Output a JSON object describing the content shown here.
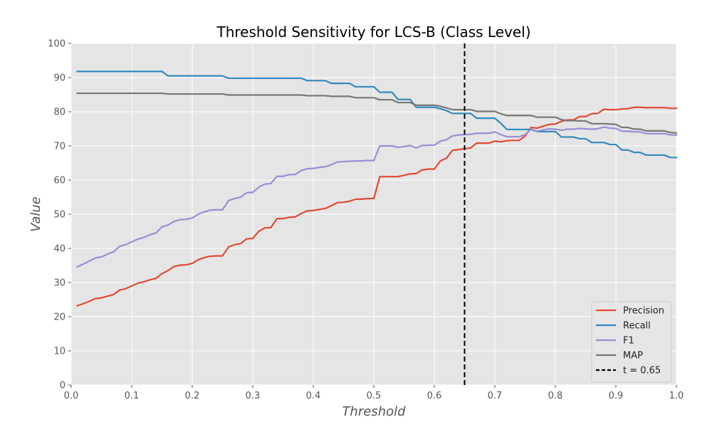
{
  "chart_data": {
    "type": "line",
    "title": "Threshold Sensitivity for LCS-B (Class Level)",
    "xlabel": "Threshold",
    "ylabel": "Value",
    "xlim": [
      0,
      1
    ],
    "ylim": [
      0,
      100
    ],
    "x_ticks": [
      "0.0",
      "0.1",
      "0.2",
      "0.3",
      "0.4",
      "0.5",
      "0.6",
      "0.7",
      "0.8",
      "0.9",
      "1.0"
    ],
    "y_ticks": [
      "0",
      "10",
      "20",
      "30",
      "40",
      "50",
      "60",
      "70",
      "80",
      "90",
      "100"
    ],
    "grid": true,
    "legend_position": "bottom-right",
    "x": [
      0.01,
      0.02,
      0.03,
      0.04,
      0.05,
      0.06,
      0.07,
      0.08,
      0.09,
      0.1,
      0.11,
      0.12,
      0.13,
      0.14,
      0.15,
      0.16,
      0.17,
      0.18,
      0.19,
      0.2,
      0.21,
      0.22,
      0.23,
      0.24,
      0.25,
      0.26,
      0.27,
      0.28,
      0.29,
      0.3,
      0.31,
      0.32,
      0.33,
      0.34,
      0.35,
      0.36,
      0.37,
      0.38,
      0.39,
      0.4,
      0.41,
      0.42,
      0.43,
      0.44,
      0.45,
      0.46,
      0.47,
      0.48,
      0.49,
      0.5,
      0.51,
      0.52,
      0.53,
      0.54,
      0.55,
      0.56,
      0.57,
      0.58,
      0.59,
      0.6,
      0.61,
      0.62,
      0.63,
      0.64,
      0.65,
      0.66,
      0.67,
      0.68,
      0.69,
      0.7,
      0.71,
      0.72,
      0.73,
      0.74,
      0.75,
      0.76,
      0.77,
      0.78,
      0.79,
      0.8,
      0.81,
      0.82,
      0.83,
      0.84,
      0.85,
      0.86,
      0.87,
      0.88,
      0.89,
      0.9,
      0.91,
      0.92,
      0.93,
      0.94,
      0.95,
      0.96,
      0.97,
      0.98,
      0.99,
      1.0
    ],
    "series": [
      {
        "name": "Precision",
        "color": "#E24A33",
        "values": [
          23.2,
          23.8,
          24.5,
          25.3,
          25.5,
          26.0,
          26.5,
          27.8,
          28.2,
          29.0,
          29.8,
          30.2,
          30.8,
          31.2,
          32.6,
          33.5,
          34.7,
          35.1,
          35.2,
          35.6,
          36.7,
          37.3,
          37.7,
          37.8,
          37.8,
          40.4,
          41.1,
          41.4,
          42.8,
          42.9,
          45.0,
          46.0,
          46.1,
          48.7,
          48.7,
          49.1,
          49.2,
          50.2,
          51.0,
          51.1,
          51.4,
          51.7,
          52.5,
          53.4,
          53.5,
          53.8,
          54.4,
          54.4,
          54.6,
          54.6,
          61.0,
          61.0,
          61.0,
          61.0,
          61.4,
          61.8,
          61.9,
          63.0,
          63.2,
          63.2,
          65.6,
          66.4,
          68.7,
          68.9,
          69.2,
          69.4,
          70.8,
          70.8,
          70.8,
          71.4,
          71.2,
          71.5,
          71.6,
          71.6,
          72.9,
          75.4,
          75.2,
          75.8,
          76.3,
          76.4,
          77.2,
          77.6,
          77.6,
          78.6,
          78.6,
          79.4,
          79.5,
          80.7,
          80.6,
          80.6,
          80.8,
          80.9,
          81.3,
          81.3,
          81.2,
          81.2,
          81.2,
          81.2,
          81.0,
          81.0
        ]
      },
      {
        "name": "Recall",
        "color": "#348ABD",
        "values": [
          91.8,
          91.8,
          91.8,
          91.8,
          91.8,
          91.8,
          91.8,
          91.8,
          91.8,
          91.8,
          91.8,
          91.8,
          91.8,
          91.8,
          91.8,
          90.5,
          90.5,
          90.5,
          90.5,
          90.5,
          90.5,
          90.5,
          90.5,
          90.5,
          90.5,
          89.8,
          89.8,
          89.8,
          89.8,
          89.8,
          89.8,
          89.8,
          89.8,
          89.8,
          89.8,
          89.8,
          89.8,
          89.8,
          89.1,
          89.1,
          89.1,
          89.1,
          88.3,
          88.3,
          88.3,
          88.3,
          87.3,
          87.3,
          87.3,
          87.3,
          85.7,
          85.7,
          85.7,
          83.6,
          83.6,
          83.6,
          81.3,
          81.3,
          81.3,
          81.3,
          80.9,
          80.3,
          79.5,
          79.5,
          79.5,
          79.5,
          78.1,
          78.1,
          78.1,
          78.1,
          76.6,
          74.8,
          74.8,
          74.8,
          74.8,
          74.8,
          74.2,
          74.2,
          74.2,
          74.2,
          72.6,
          72.6,
          72.6,
          72.1,
          72.1,
          71.0,
          71.0,
          71.0,
          70.4,
          70.4,
          68.8,
          68.8,
          68.1,
          68.1,
          67.3,
          67.3,
          67.3,
          67.3,
          66.6,
          66.6
        ]
      },
      {
        "name": "F1",
        "color": "#988ED5",
        "values": [
          34.6,
          35.4,
          36.3,
          37.2,
          37.5,
          38.3,
          39.0,
          40.6,
          41.1,
          41.9,
          42.7,
          43.2,
          44.0,
          44.5,
          46.3,
          46.8,
          47.9,
          48.4,
          48.5,
          48.9,
          50.0,
          50.7,
          51.2,
          51.3,
          51.3,
          54.0,
          54.6,
          55.0,
          56.3,
          56.4,
          57.9,
          58.8,
          59.0,
          61.1,
          61.1,
          61.6,
          61.6,
          62.8,
          63.3,
          63.4,
          63.7,
          63.9,
          64.5,
          65.3,
          65.4,
          65.5,
          65.6,
          65.6,
          65.7,
          65.7,
          70.0,
          70.0,
          70.0,
          69.6,
          69.8,
          70.1,
          69.4,
          70.1,
          70.2,
          70.2,
          71.4,
          71.8,
          72.9,
          73.2,
          73.3,
          73.4,
          73.7,
          73.7,
          73.7,
          74.1,
          73.3,
          72.7,
          72.7,
          72.7,
          73.3,
          74.9,
          74.3,
          74.7,
          75.0,
          74.9,
          74.6,
          74.9,
          74.9,
          75.1,
          75.0,
          74.9,
          75.0,
          75.5,
          75.2,
          75.1,
          74.3,
          74.3,
          74.1,
          74.1,
          73.6,
          73.6,
          73.6,
          73.6,
          73.2,
          73.2
        ]
      },
      {
        "name": "MAP",
        "color": "#777777",
        "values": [
          85.4,
          85.4,
          85.4,
          85.4,
          85.4,
          85.4,
          85.4,
          85.4,
          85.4,
          85.4,
          85.4,
          85.4,
          85.4,
          85.4,
          85.4,
          85.2,
          85.2,
          85.2,
          85.2,
          85.2,
          85.2,
          85.2,
          85.2,
          85.2,
          85.2,
          84.9,
          84.9,
          84.9,
          84.9,
          84.9,
          84.9,
          84.9,
          84.9,
          84.9,
          84.9,
          84.9,
          84.9,
          84.9,
          84.7,
          84.7,
          84.7,
          84.7,
          84.5,
          84.5,
          84.5,
          84.5,
          84.1,
          84.1,
          84.1,
          84.1,
          83.5,
          83.5,
          83.5,
          82.7,
          82.7,
          82.7,
          81.9,
          81.9,
          81.9,
          81.9,
          81.6,
          81.1,
          80.6,
          80.6,
          80.6,
          80.6,
          80.1,
          80.1,
          80.1,
          80.1,
          79.4,
          78.9,
          78.9,
          78.9,
          78.9,
          78.9,
          78.4,
          78.4,
          78.4,
          78.4,
          77.7,
          77.4,
          77.4,
          77.3,
          77.3,
          76.5,
          76.5,
          76.5,
          76.4,
          76.3,
          75.4,
          75.4,
          74.9,
          74.9,
          74.4,
          74.4,
          74.4,
          74.4,
          73.9,
          73.8
        ]
      }
    ],
    "annotations": [
      {
        "type": "vline",
        "x": 0.65,
        "label": "t = 0.65",
        "color": "#000000",
        "style": "dashed"
      }
    ]
  }
}
